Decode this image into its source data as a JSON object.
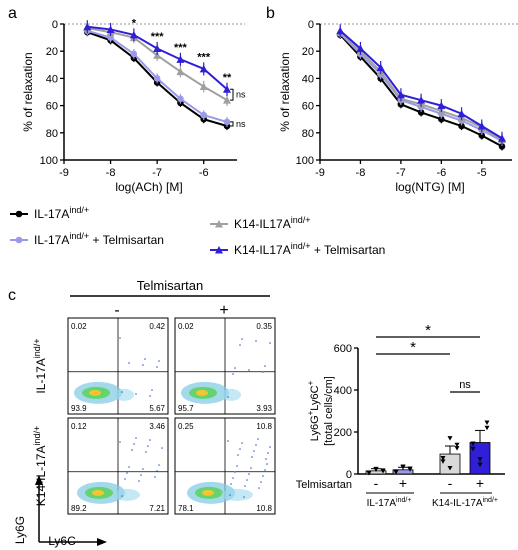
{
  "panel_labels": {
    "a": "a",
    "b": "b",
    "c": "c"
  },
  "legend": {
    "items": [
      {
        "label": "IL-17A",
        "sup": "ind/+",
        "extra": "",
        "color": "#000000",
        "marker": "circle"
      },
      {
        "label": "IL-17A",
        "sup": "ind/+",
        "extra": " + Telmisartan",
        "color": "#9a9ae8",
        "marker": "circle"
      },
      {
        "label": "K14-IL17A",
        "sup": "ind/+",
        "extra": "",
        "color": "#a0a0a0",
        "marker": "triangle"
      },
      {
        "label": "K14-IL17A",
        "sup": "ind/+",
        "extra": " + Telmisartan",
        "color": "#2f1fd6",
        "marker": "triangle"
      }
    ]
  },
  "colors": {
    "black": "#000000",
    "lavender": "#9a9ae8",
    "grey": "#a0a0a0",
    "blue": "#2f1fd6"
  },
  "chart_data": [
    {
      "type": "line",
      "panel": "a",
      "xlabel": "log(ACh) [M]",
      "ylabel": "% of relaxation",
      "xlim": [
        -9,
        -5.5
      ],
      "ylim": [
        0,
        100
      ],
      "y_inverted": true,
      "xticks": [
        "-9",
        "-8",
        "-7",
        "-6"
      ],
      "yticks": [
        "0",
        "20",
        "40",
        "60",
        "80",
        "100"
      ],
      "x": [
        -8.5,
        -8,
        -7.5,
        -7,
        -6.5,
        -6,
        -5.5
      ],
      "series": [
        {
          "name": "IL-17A ind/+",
          "color": "#000000",
          "marker": "circle",
          "values": [
            6,
            12,
            25,
            43,
            58,
            70,
            75
          ]
        },
        {
          "name": "IL-17A ind/+ + Telmisartan",
          "color": "#9a9ae8",
          "marker": "circle",
          "values": [
            5,
            10,
            22,
            40,
            55,
            67,
            72
          ]
        },
        {
          "name": "K14-IL17A ind/+",
          "color": "#a0a0a0",
          "marker": "triangle",
          "values": [
            3,
            6,
            10,
            23,
            35,
            46,
            56
          ]
        },
        {
          "name": "K14-IL17A ind/+ + Telmisartan",
          "color": "#2f1fd6",
          "marker": "triangle",
          "values": [
            2,
            4,
            8,
            18,
            26,
            33,
            48
          ]
        }
      ],
      "annotations": [
        {
          "x": -7.5,
          "text": "*"
        },
        {
          "x": -7,
          "text": "***"
        },
        {
          "x": -6.5,
          "text": "***"
        },
        {
          "x": -6,
          "text": "***"
        },
        {
          "x": -5.5,
          "text": "**"
        }
      ],
      "brackets": [
        {
          "y1": 48,
          "y2": 56,
          "text": "ns"
        },
        {
          "y1": 72,
          "y2": 75,
          "text": "ns"
        }
      ]
    },
    {
      "type": "line",
      "panel": "b",
      "xlabel": "log(NTG) [M]",
      "ylabel": "% of relaxation",
      "xlim": [
        -9,
        -4.5
      ],
      "ylim": [
        0,
        100
      ],
      "y_inverted": true,
      "xticks": [
        "-9",
        "-8",
        "-7",
        "-6",
        "-5"
      ],
      "yticks": [
        "0",
        "20",
        "40",
        "60",
        "80",
        "100"
      ],
      "x": [
        -8.5,
        -8,
        -7.5,
        -7,
        -6.5,
        -6,
        -5.5,
        -5,
        -4.5
      ],
      "series": [
        {
          "name": "IL-17A ind/+",
          "color": "#000000",
          "marker": "circle",
          "values": [
            8,
            24,
            40,
            59,
            65,
            70,
            75,
            82,
            90
          ]
        },
        {
          "name": "IL-17A ind/+ + Telmisartan",
          "color": "#9a9ae8",
          "marker": "circle",
          "values": [
            7,
            22,
            37,
            56,
            61,
            66,
            71,
            78,
            86
          ]
        },
        {
          "name": "K14-IL17A ind/+",
          "color": "#a0a0a0",
          "marker": "triangle",
          "values": [
            6,
            20,
            35,
            55,
            59,
            64,
            69,
            76,
            85
          ]
        },
        {
          "name": "K14-IL17A ind/+ + Telmisartan",
          "color": "#2f1fd6",
          "marker": "triangle",
          "values": [
            5,
            18,
            32,
            52,
            56,
            60,
            66,
            75,
            84
          ]
        }
      ]
    },
    {
      "type": "bar",
      "panel": "c",
      "ylabel": "Ly6G+Ly6C+ [total cells/cm]",
      "ylabel_line1": "Ly6G",
      "ylabel_line1b": "Ly6C",
      "ylabel_line2": "[total cells/cm]",
      "ylim": [
        0,
        600
      ],
      "yticks": [
        "0",
        "200",
        "400",
        "600"
      ],
      "categories": [
        "IL-17A ind/+ -",
        "IL-17A ind/+ +",
        "K14-IL-17A ind/+ -",
        "K14-IL-17A ind/+ +"
      ],
      "values": [
        15,
        20,
        95,
        150
      ],
      "colors": [
        "#d9d9d9",
        "#9a9ae8",
        "#d9d9d9",
        "#2f1fd6"
      ],
      "signs": [
        "-",
        "+",
        "-",
        "+"
      ],
      "row_label": "Telmisartan",
      "group_labels": [
        {
          "main": "IL-17A",
          "sup": "ind/+"
        },
        {
          "main": "K14-IL-17A",
          "sup": "ind/+"
        }
      ],
      "significance": [
        {
          "text": "*"
        },
        {
          "text": "*"
        },
        {
          "text": "ns"
        }
      ]
    }
  ],
  "flow": {
    "header": "Telmisartan",
    "columns": [
      "-",
      "+"
    ],
    "rows": [
      {
        "label": "IL-17A",
        "sup": "ind/+"
      },
      {
        "label": "K14-IL-17A",
        "sup": "ind/+"
      }
    ],
    "quadrants": [
      {
        "tl": "0.02",
        "tr": "0.42",
        "bl": "93.9",
        "br": "5.67"
      },
      {
        "tl": "0.02",
        "tr": "0.35",
        "bl": "95.7",
        "br": "3.93"
      },
      {
        "tl": "0.12",
        "tr": "3.46",
        "bl": "89.2",
        "br": "7.21"
      },
      {
        "tl": "0.25",
        "tr": "10.8",
        "bl": "78.1",
        "br": "10.8"
      }
    ],
    "axis_y": "Ly6G",
    "axis_x": "Ly6C"
  }
}
